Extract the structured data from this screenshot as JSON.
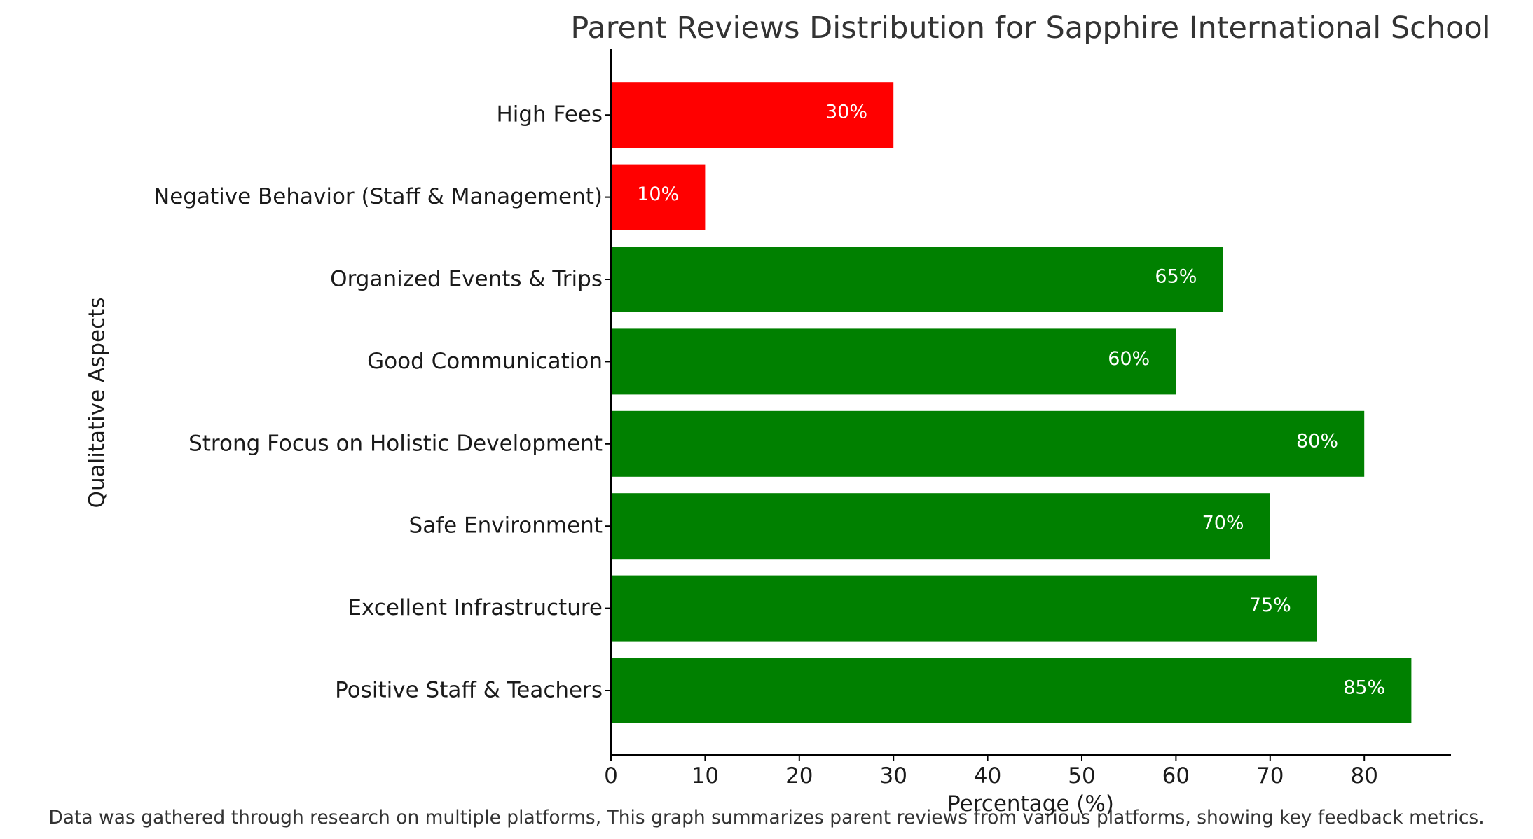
{
  "chart_data": {
    "type": "bar",
    "orientation": "horizontal",
    "title": "Parent Reviews Distribution for Sapphire International School",
    "xlabel": "Percentage (%)",
    "ylabel": "Qualitative Aspects",
    "xlim": [
      0,
      89.25
    ],
    "xticks": [
      0,
      10,
      20,
      30,
      40,
      50,
      60,
      70,
      80
    ],
    "categories": [
      "Positive Staff & Teachers",
      "Excellent Infrastructure",
      "Safe Environment",
      "Strong Focus on Holistic Development",
      "Good Communication",
      "Organized Events & Trips",
      "Negative Behavior (Staff & Management)",
      "High Fees"
    ],
    "values": [
      85,
      75,
      70,
      80,
      60,
      65,
      10,
      30
    ],
    "value_labels": [
      "85%",
      "75%",
      "70%",
      "80%",
      "60%",
      "65%",
      "10%",
      "30%"
    ],
    "colors": [
      "#008000",
      "#008000",
      "#008000",
      "#008000",
      "#008000",
      "#008000",
      "#ff0000",
      "#ff0000"
    ],
    "grid": false,
    "footnote": "Data was gathered through research on multiple platforms, This graph summarizes parent reviews from various platforms, showing key feedback metrics."
  }
}
